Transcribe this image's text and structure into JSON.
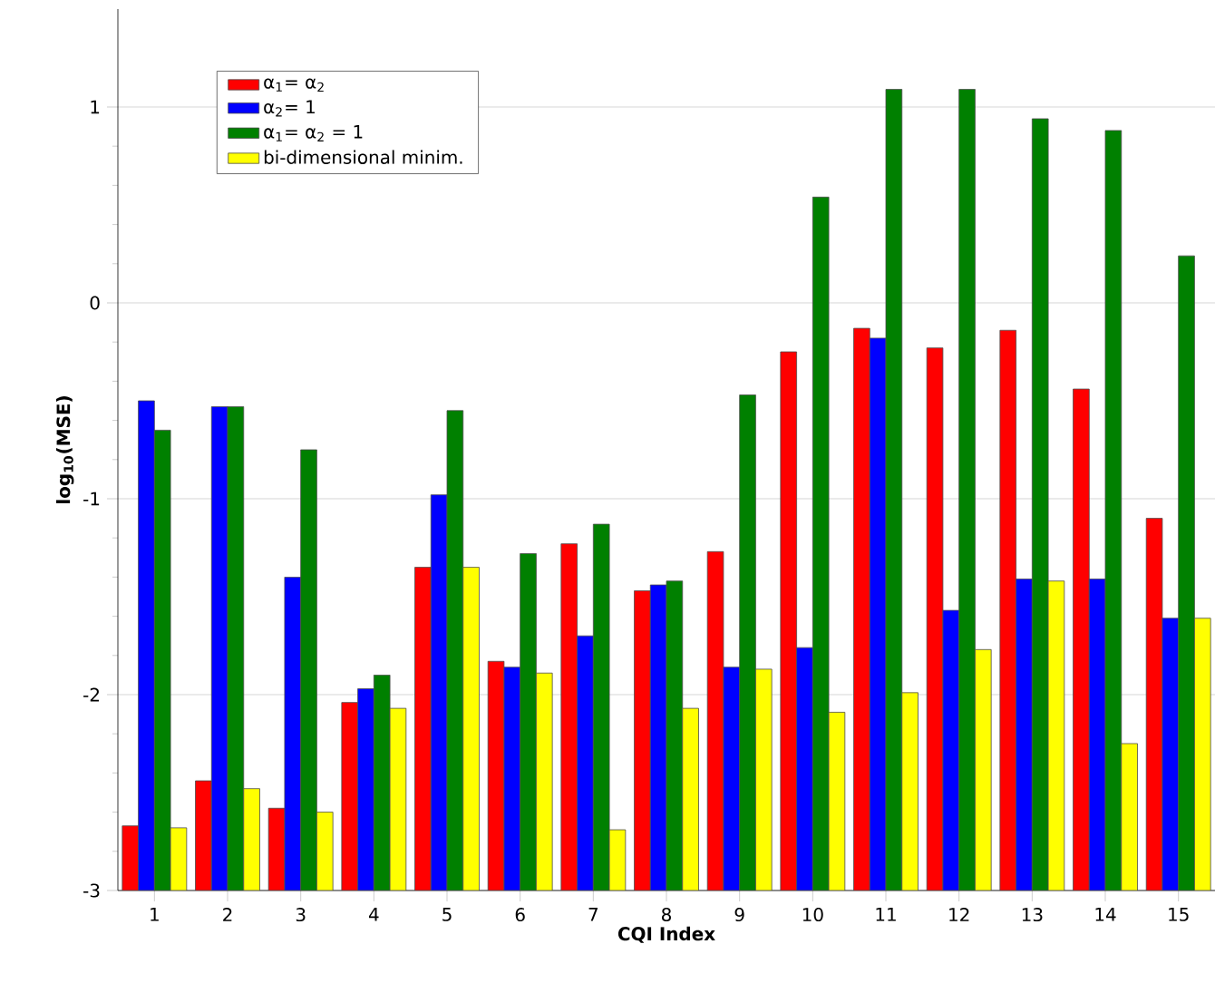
{
  "chart_data": {
    "type": "bar",
    "xlabel": "CQI Index",
    "ylabel": "log$_{10}$(MSE)",
    "categories": [
      "1",
      "2",
      "3",
      "4",
      "5",
      "6",
      "7",
      "8",
      "9",
      "10",
      "11",
      "12",
      "13",
      "14",
      "15"
    ],
    "series": [
      {
        "name": "α$_{1}$= α$_{2}$",
        "color": "#ff0000",
        "base": [
          -3,
          -3,
          -3,
          -3,
          -3,
          -3,
          -3,
          -3,
          -3,
          -3,
          -3,
          -3,
          -3,
          -3,
          -3
        ],
        "values": [
          0.33,
          0.56,
          0.42,
          0.96,
          1.65,
          1.17,
          1.77,
          1.53,
          1.73,
          2.75,
          2.87,
          2.77,
          2.86,
          2.56,
          1.9
        ]
      },
      {
        "name": "α$_{2}$= 1",
        "color": "#0000ff",
        "base": [
          -3,
          -3,
          -3,
          -3,
          -3,
          -3,
          -3,
          -3,
          -3,
          -3,
          -3,
          -3,
          -3,
          -3,
          -3
        ],
        "values": [
          2.5,
          2.47,
          1.6,
          1.03,
          2.02,
          1.14,
          1.3,
          1.56,
          1.14,
          1.24,
          2.82,
          1.43,
          1.59,
          1.59,
          1.39
        ]
      },
      {
        "name": "α$_{1}$= α$_{2}$ = 1",
        "color": "#008000",
        "base": [
          -3,
          -3,
          -3,
          -3,
          -3,
          -3,
          -3,
          -3,
          -3,
          -3,
          -3,
          -3,
          -3,
          -3,
          -3
        ],
        "values": [
          2.35,
          2.47,
          2.25,
          1.1,
          2.45,
          1.72,
          1.87,
          1.58,
          2.53,
          3.54,
          4.09,
          4.09,
          3.94,
          3.88,
          3.24
        ]
      },
      {
        "name": "bi-dimensional minim.",
        "color": "#ffff00",
        "base": [
          -3,
          -3,
          -3,
          -3,
          -3,
          -3,
          -3,
          -3,
          -3,
          -3,
          -3,
          -3,
          -3,
          -3,
          -3
        ],
        "values": [
          0.32,
          0.52,
          0.4,
          0.93,
          1.65,
          1.11,
          0.31,
          0.93,
          1.13,
          0.91,
          1.01,
          1.23,
          1.58,
          0.75,
          1.39
        ]
      }
    ],
    "ylim": [
      -3,
      1.5
    ],
    "yticks": [
      -3,
      -2,
      -1,
      0,
      1
    ],
    "grid": "y",
    "legend": "top left"
  }
}
